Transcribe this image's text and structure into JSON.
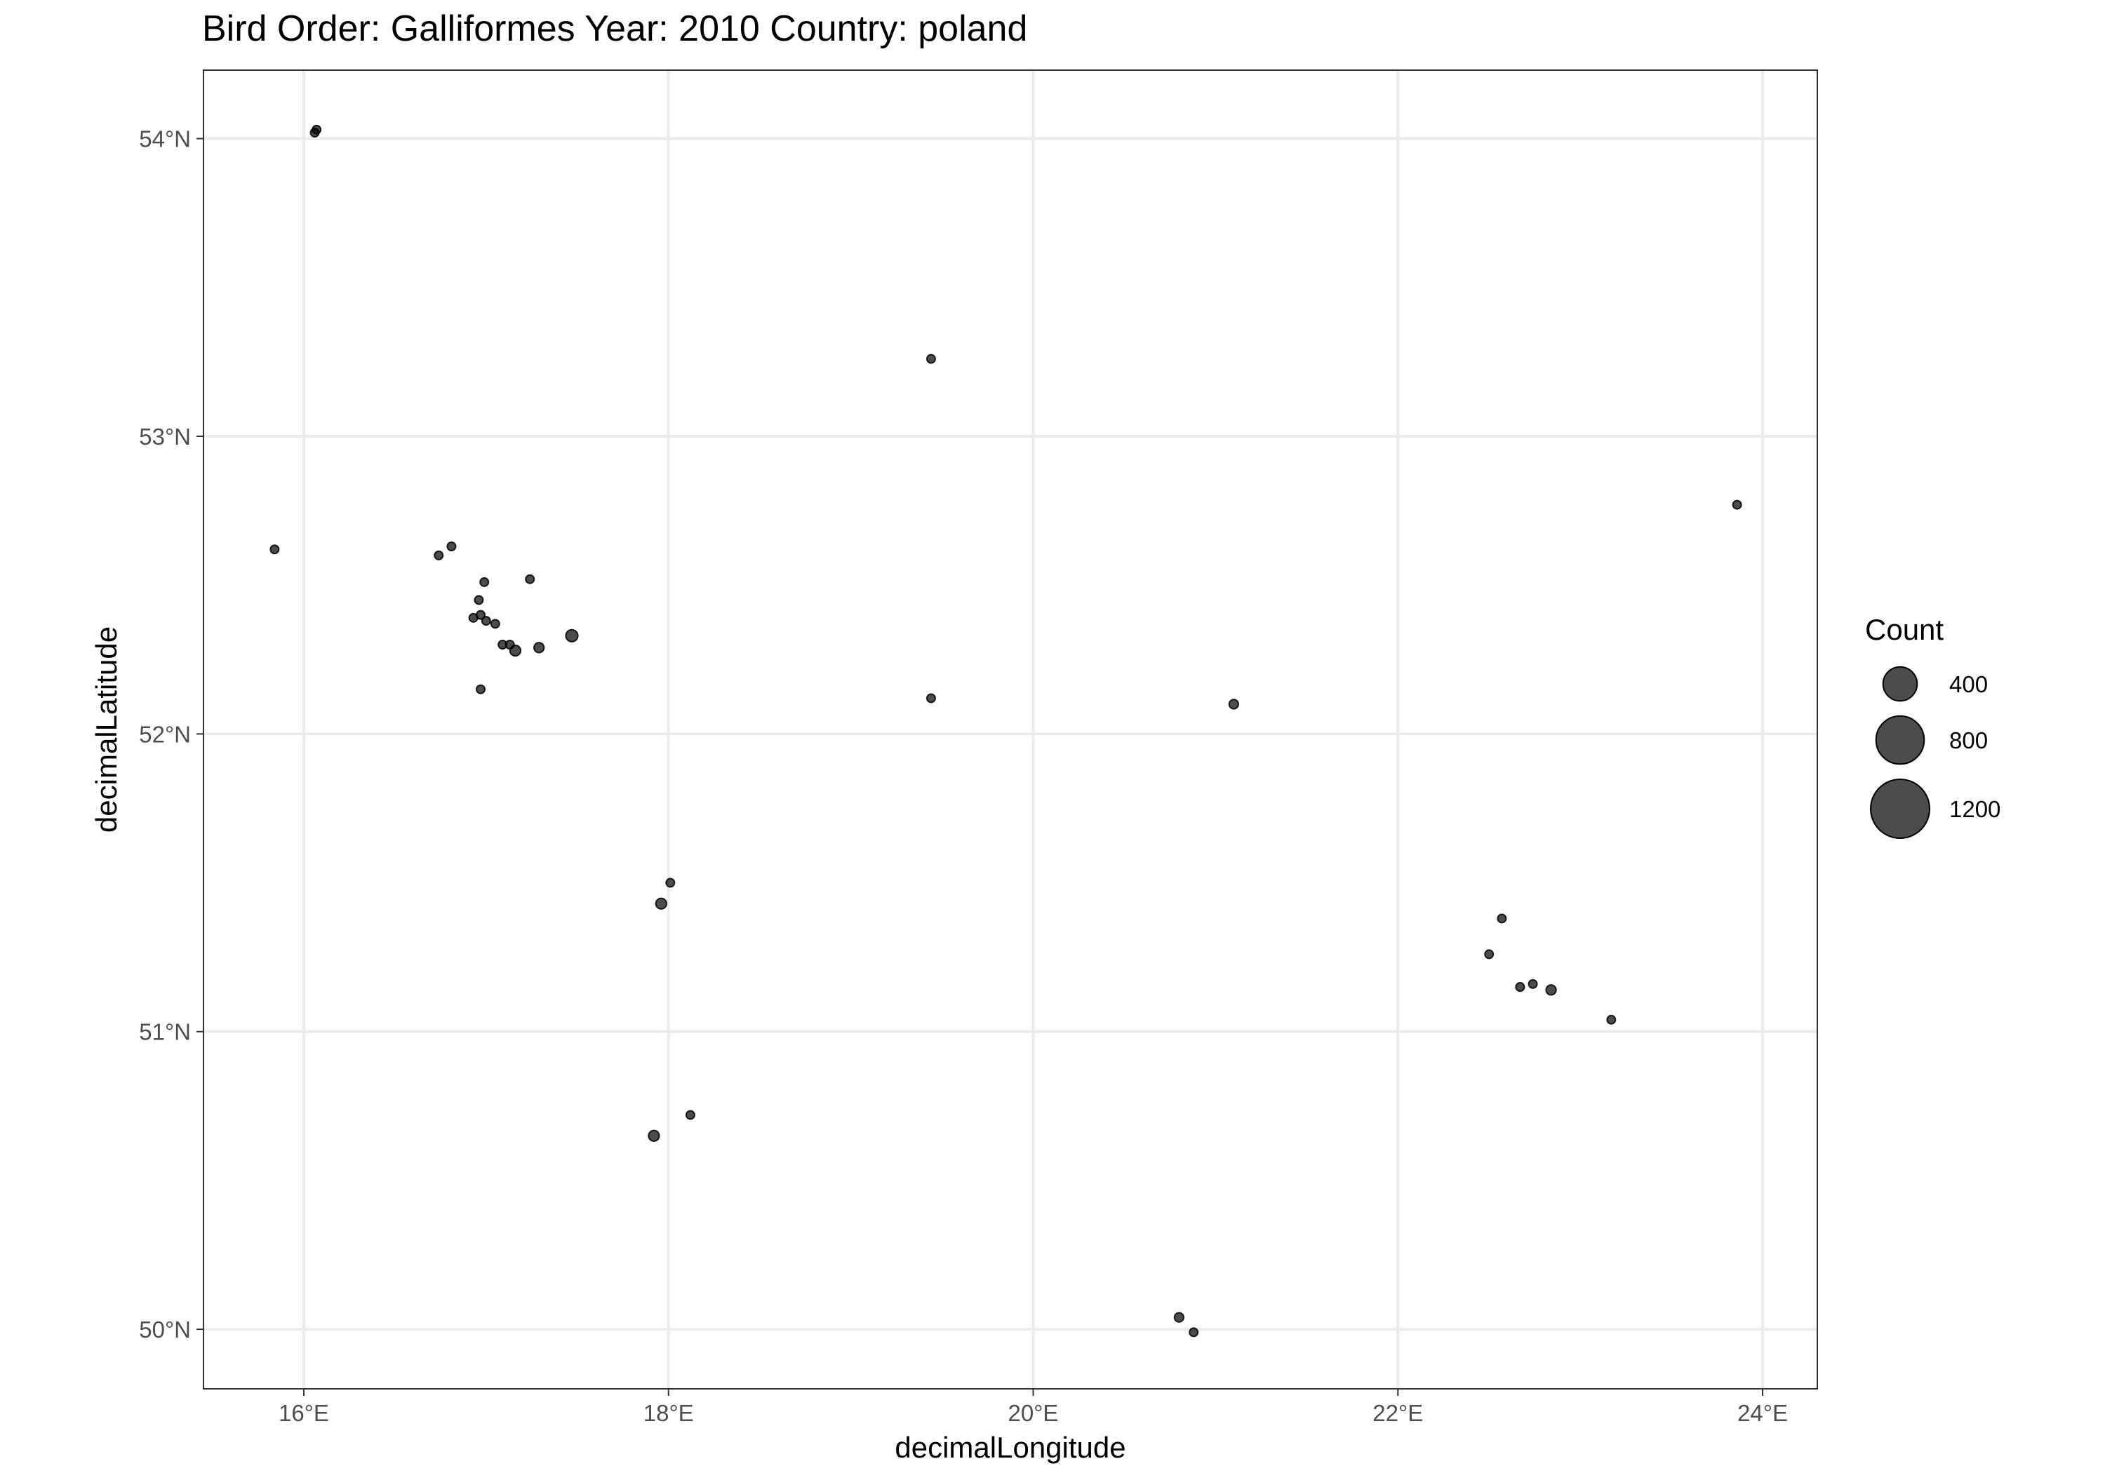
{
  "chart_data": {
    "type": "scatter",
    "title": "Bird Order: Galliformes Year: 2010 Country: poland",
    "xlabel": "decimalLongitude",
    "ylabel": "decimalLatitude",
    "xlim": [
      15.45,
      24.3
    ],
    "ylim": [
      49.8,
      54.23
    ],
    "x_ticks": [
      16,
      18,
      20,
      22,
      24
    ],
    "x_tick_labels": [
      "16°E",
      "18°E",
      "20°E",
      "22°E",
      "24°E"
    ],
    "y_ticks": [
      50,
      51,
      52,
      53,
      54
    ],
    "y_tick_labels": [
      "50°N",
      "51°N",
      "52°N",
      "53°N",
      "54°N"
    ],
    "grid": true,
    "point_color": "#000000",
    "point_opacity": 0.7,
    "size_legend": {
      "title": "Count",
      "placement": "right",
      "entries": [
        {
          "label": "400",
          "value": 400
        },
        {
          "label": "800",
          "value": 800
        },
        {
          "label": "1200",
          "value": 1200
        }
      ]
    },
    "points": [
      {
        "lon": 16.07,
        "lat": 54.03,
        "count": 20
      },
      {
        "lon": 16.06,
        "lat": 54.02,
        "count": 20
      },
      {
        "lon": 19.44,
        "lat": 53.26,
        "count": 4
      },
      {
        "lon": 23.86,
        "lat": 52.77,
        "count": 4
      },
      {
        "lon": 15.84,
        "lat": 52.62,
        "count": 4
      },
      {
        "lon": 16.74,
        "lat": 52.6,
        "count": 4
      },
      {
        "lon": 16.81,
        "lat": 52.63,
        "count": 4
      },
      {
        "lon": 17.24,
        "lat": 52.52,
        "count": 4
      },
      {
        "lon": 16.99,
        "lat": 52.51,
        "count": 15
      },
      {
        "lon": 16.96,
        "lat": 52.45,
        "count": 15
      },
      {
        "lon": 16.93,
        "lat": 52.39,
        "count": 10
      },
      {
        "lon": 16.97,
        "lat": 52.4,
        "count": 15
      },
      {
        "lon": 17.0,
        "lat": 52.38,
        "count": 20
      },
      {
        "lon": 17.05,
        "lat": 52.37,
        "count": 10
      },
      {
        "lon": 17.09,
        "lat": 52.3,
        "count": 25
      },
      {
        "lon": 17.13,
        "lat": 52.3,
        "count": 25
      },
      {
        "lon": 17.16,
        "lat": 52.28,
        "count": 40
      },
      {
        "lon": 17.29,
        "lat": 52.29,
        "count": 35
      },
      {
        "lon": 17.47,
        "lat": 52.33,
        "count": 50
      },
      {
        "lon": 16.97,
        "lat": 52.15,
        "count": 4
      },
      {
        "lon": 19.44,
        "lat": 52.12,
        "count": 20
      },
      {
        "lon": 21.1,
        "lat": 52.1,
        "count": 30
      },
      {
        "lon": 18.01,
        "lat": 51.5,
        "count": 20
      },
      {
        "lon": 17.96,
        "lat": 51.43,
        "count": 40
      },
      {
        "lon": 22.57,
        "lat": 51.38,
        "count": 15
      },
      {
        "lon": 22.5,
        "lat": 51.26,
        "count": 4
      },
      {
        "lon": 22.67,
        "lat": 51.15,
        "count": 25
      },
      {
        "lon": 22.74,
        "lat": 51.16,
        "count": 20
      },
      {
        "lon": 22.84,
        "lat": 51.14,
        "count": 35
      },
      {
        "lon": 23.17,
        "lat": 51.04,
        "count": 20
      },
      {
        "lon": 18.12,
        "lat": 50.72,
        "count": 4
      },
      {
        "lon": 17.92,
        "lat": 50.65,
        "count": 40
      },
      {
        "lon": 20.8,
        "lat": 50.04,
        "count": 30
      },
      {
        "lon": 20.88,
        "lat": 49.99,
        "count": 4
      }
    ]
  }
}
